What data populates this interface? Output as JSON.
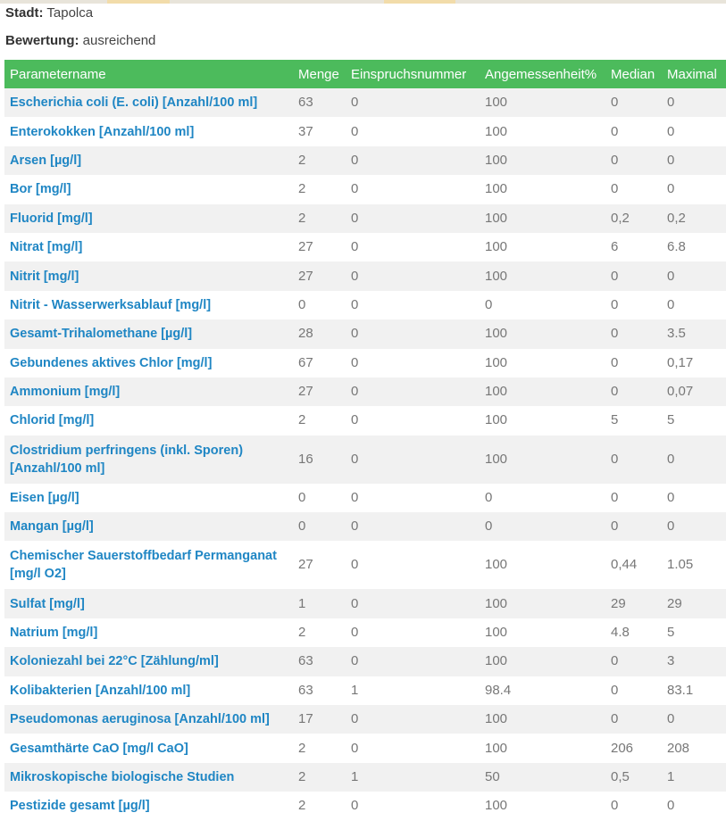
{
  "header": {
    "city_label": "Stadt:",
    "city_value": "Tapolca",
    "rating_label": "Bewertung:",
    "rating_value": "ausreichend"
  },
  "colors": {
    "header_bg": "#4cbb5c",
    "link": "#1f86c4"
  },
  "table": {
    "columns": [
      "Parametername",
      "Menge",
      "Einspruchsnummer",
      "Angemessenheit%",
      "Median",
      "Maximal"
    ],
    "rows": [
      [
        "Escherichia coli (E. coli) [Anzahl/100 ml]",
        "63",
        "0",
        "100",
        "0",
        "0"
      ],
      [
        "Enterokokken [Anzahl/100 ml]",
        "37",
        "0",
        "100",
        "0",
        "0"
      ],
      [
        "Arsen [µg/l]",
        "2",
        "0",
        "100",
        "0",
        "0"
      ],
      [
        "Bor [mg/l]",
        "2",
        "0",
        "100",
        "0",
        "0"
      ],
      [
        "Fluorid [mg/l]",
        "2",
        "0",
        "100",
        "0,2",
        "0,2"
      ],
      [
        "Nitrat [mg/l]",
        "27",
        "0",
        "100",
        "6",
        "6.8"
      ],
      [
        "Nitrit [mg/l]",
        "27",
        "0",
        "100",
        "0",
        "0"
      ],
      [
        "Nitrit - Wasserwerksablauf [mg/l]",
        "0",
        "0",
        "0",
        "0",
        "0"
      ],
      [
        "Gesamt-Trihalomethane [µg/l]",
        "28",
        "0",
        "100",
        "0",
        "3.5"
      ],
      [
        "Gebundenes aktives Chlor [mg/l]",
        "67",
        "0",
        "100",
        "0",
        "0,17"
      ],
      [
        "Ammonium [mg/l]",
        "27",
        "0",
        "100",
        "0",
        "0,07"
      ],
      [
        "Chlorid [mg/l]",
        "2",
        "0",
        "100",
        "5",
        "5"
      ],
      [
        "Clostridium perfringens (inkl. Sporen) [Anzahl/100 ml]",
        "16",
        "0",
        "100",
        "0",
        "0"
      ],
      [
        "Eisen [µg/l]",
        "0",
        "0",
        "0",
        "0",
        "0"
      ],
      [
        "Mangan [µg/l]",
        "0",
        "0",
        "0",
        "0",
        "0"
      ],
      [
        "Chemischer Sauerstoffbedarf Permanganat [mg/l O2]",
        "27",
        "0",
        "100",
        "0,44",
        "1.05"
      ],
      [
        "Sulfat [mg/l]",
        "1",
        "0",
        "100",
        "29",
        "29"
      ],
      [
        "Natrium [mg/l]",
        "2",
        "0",
        "100",
        "4.8",
        "5"
      ],
      [
        "Koloniezahl bei 22°C [Zählung/ml]",
        "63",
        "0",
        "100",
        "0",
        "3"
      ],
      [
        "Kolibakterien [Anzahl/100 ml]",
        "63",
        "1",
        "98.4",
        "0",
        "83.1"
      ],
      [
        "Pseudomonas aeruginosa [Anzahl/100 ml]",
        "17",
        "0",
        "100",
        "0",
        "0"
      ],
      [
        "Gesamthärte CaO [mg/l CaO]",
        "2",
        "0",
        "100",
        "206",
        "208"
      ],
      [
        "Mikroskopische biologische Studien",
        "2",
        "1",
        "50",
        "0,5",
        "1"
      ],
      [
        "Pestizide gesamt [µg/l]",
        "2",
        "0",
        "100",
        "0",
        "0"
      ]
    ]
  }
}
